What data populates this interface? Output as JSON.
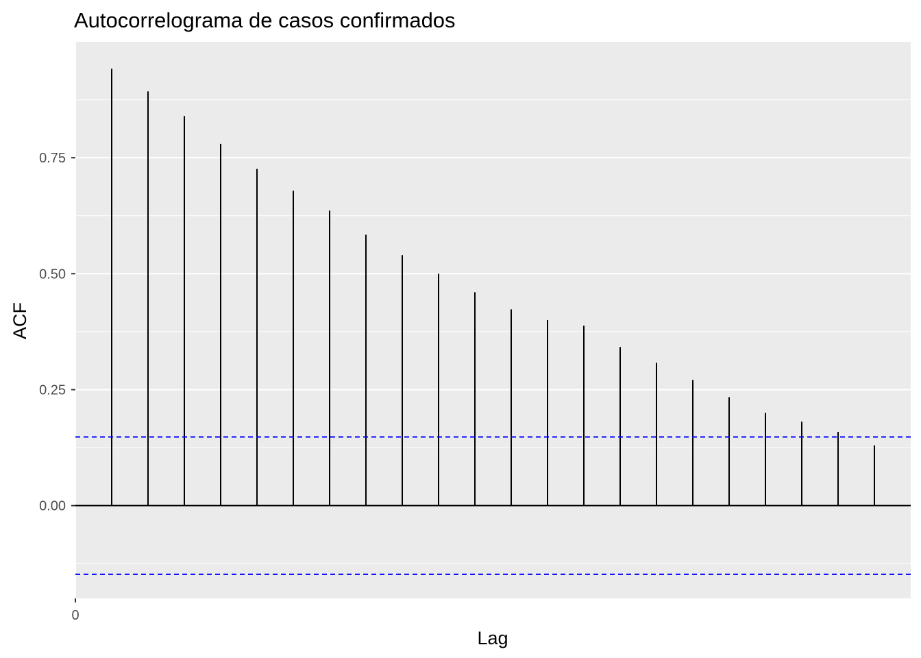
{
  "chart_data": {
    "type": "bar",
    "title": "Autocorrelograma de casos confirmados",
    "xlabel": "Lag",
    "ylabel": "ACF",
    "x_ticks": [
      "0"
    ],
    "y_ticks": [
      "0.00",
      "0.25",
      "0.50",
      "0.75"
    ],
    "lags": [
      1,
      2,
      3,
      4,
      5,
      6,
      7,
      8,
      9,
      10,
      11,
      12,
      13,
      14,
      15,
      16,
      17,
      18,
      19,
      20,
      21,
      22
    ],
    "values": [
      0.942,
      0.893,
      0.84,
      0.78,
      0.726,
      0.679,
      0.636,
      0.584,
      0.54,
      0.5,
      0.46,
      0.423,
      0.4,
      0.388,
      0.342,
      0.308,
      0.271,
      0.234,
      0.2,
      0.181,
      0.159,
      0.13
    ],
    "confidence_limit": 0.148,
    "xlim": [
      0,
      23
    ],
    "ylim": [
      -0.2,
      1.0
    ],
    "grid": true,
    "colors": {
      "panel": "#ebebeb",
      "grid": "#ffffff",
      "bars": "#000000",
      "confidence_lines": "#0000ff"
    }
  }
}
